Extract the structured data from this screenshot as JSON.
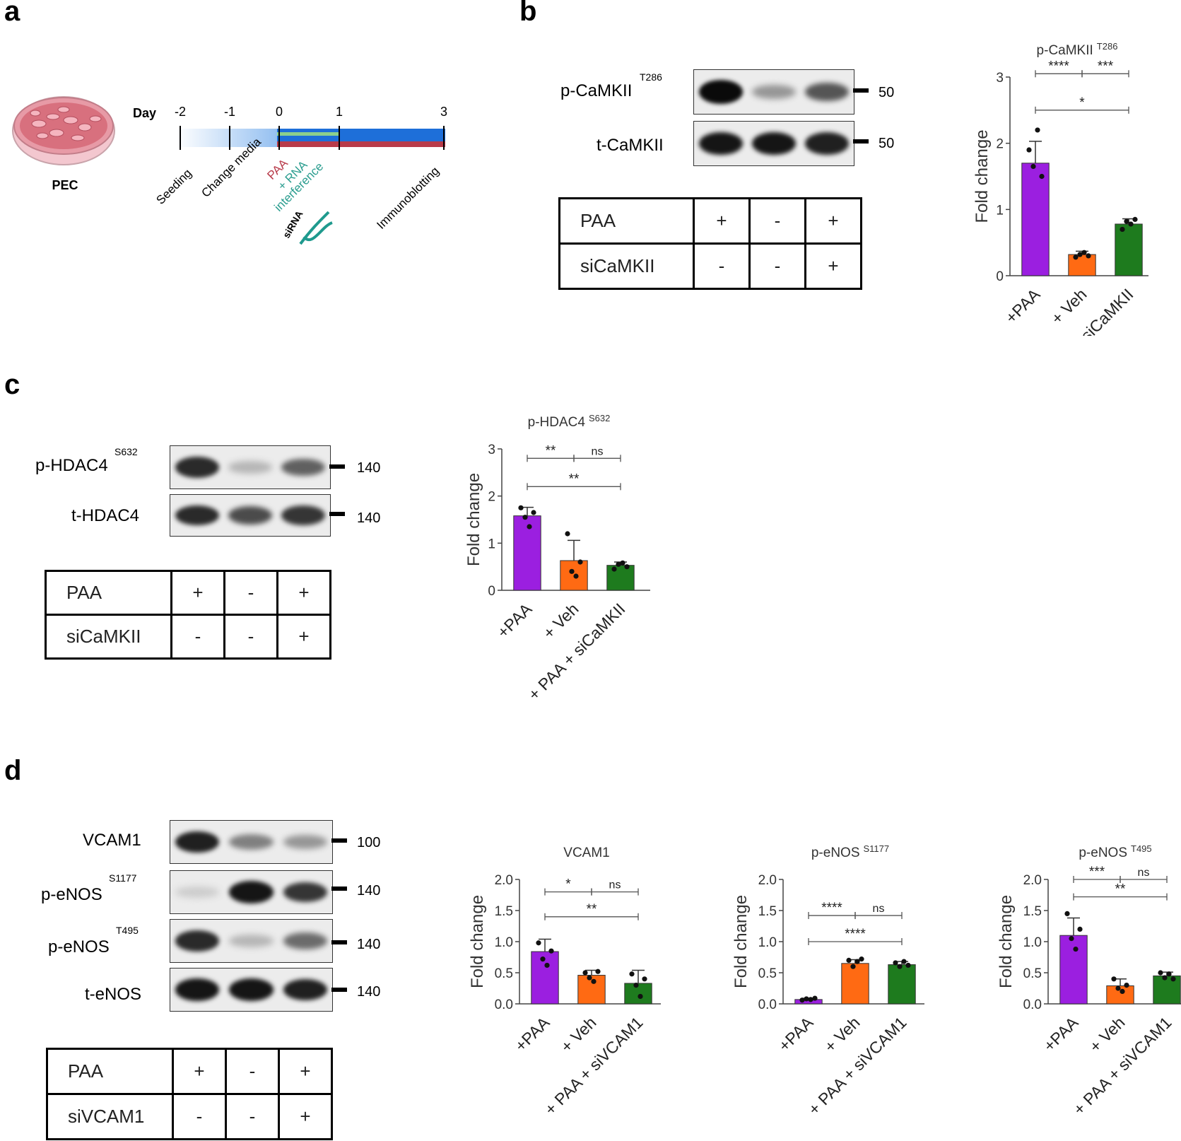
{
  "panel_a": {
    "letter": "a",
    "dish_label": "PEC",
    "day_label": "Day",
    "days": [
      "-2",
      "-1",
      "0",
      "1",
      "3"
    ],
    "events": [
      "Seeding",
      "Change media",
      "PAA",
      "+ RNA",
      "interference",
      "siRNA",
      "Immunoblotting"
    ],
    "colors": {
      "paa": "#b83b4a",
      "rna": "#2a9d8f",
      "timeline": "#1e6fd9"
    }
  },
  "panel_b": {
    "letter": "b",
    "blots": [
      {
        "label": "p-CaMKII",
        "site": "T286",
        "mw": "50",
        "intensities": [
          1.0,
          0.35,
          0.65
        ]
      },
      {
        "label": "t-CaMKII",
        "site": "",
        "mw": "50",
        "intensities": [
          0.95,
          0.95,
          0.9
        ]
      }
    ],
    "conditions": [
      {
        "name": "PAA",
        "values": [
          "+",
          "-",
          "+"
        ]
      },
      {
        "name": "siCaMKII",
        "values": [
          "-",
          "-",
          "+"
        ]
      }
    ]
  },
  "panel_c": {
    "letter": "c",
    "blots": [
      {
        "label": "p-HDAC4",
        "site": "S632",
        "mw": "140",
        "intensities": [
          0.85,
          0.2,
          0.6
        ]
      },
      {
        "label": "t-HDAC4",
        "site": "",
        "mw": "140",
        "intensities": [
          0.85,
          0.7,
          0.8
        ]
      }
    ],
    "conditions": [
      {
        "name": "PAA",
        "values": [
          "+",
          "-",
          "+"
        ]
      },
      {
        "name": "siCaMKII",
        "values": [
          "-",
          "-",
          "+"
        ]
      }
    ]
  },
  "panel_d": {
    "letter": "d",
    "blots": [
      {
        "label": "VCAM1",
        "site": "",
        "mw": "100",
        "intensities": [
          0.9,
          0.45,
          0.35
        ]
      },
      {
        "label": "p-eNOS",
        "site": "S1177",
        "mw": "140",
        "intensities": [
          0.1,
          0.95,
          0.8
        ]
      },
      {
        "label": "p-eNOS",
        "site": "T495",
        "mw": "140",
        "intensities": [
          0.85,
          0.2,
          0.55
        ]
      },
      {
        "label": "t-eNOS",
        "site": "",
        "mw": "140",
        "intensities": [
          0.95,
          0.95,
          0.9
        ]
      }
    ],
    "conditions": [
      {
        "name": "PAA",
        "values": [
          "+",
          "-",
          "+"
        ]
      },
      {
        "name": "siVCAM1",
        "values": [
          "-",
          "-",
          "+"
        ]
      }
    ]
  },
  "chart_data": [
    {
      "id": "b",
      "type": "bar",
      "title": "p-CaMKII",
      "title_sup": "T286",
      "ylabel": "Fold change",
      "ylim": [
        0,
        3
      ],
      "yticks": [
        "0",
        "1",
        "2",
        "3"
      ],
      "categories": [
        "+PAA",
        "+ Veh",
        "+ PAA + siCaMKII"
      ],
      "values": [
        1.7,
        0.32,
        0.78
      ],
      "errors": [
        0.33,
        0.05,
        0.08
      ],
      "points": [
        [
          1.9,
          1.65,
          2.2,
          1.5
        ],
        [
          0.28,
          0.32,
          0.35,
          0.3
        ],
        [
          0.7,
          0.82,
          0.78,
          0.85
        ]
      ],
      "colors": [
        "#9b1fe0",
        "#ff6a13",
        "#1e7b1e"
      ],
      "significance": [
        {
          "label": "****",
          "from": 0,
          "to": 1,
          "y": 3.05
        },
        {
          "label": "***",
          "from": 1,
          "to": 2,
          "y": 3.05
        },
        {
          "label": "*",
          "from": 0,
          "to": 2,
          "y": 2.5
        }
      ]
    },
    {
      "id": "c",
      "type": "bar",
      "title": "p-HDAC4",
      "title_sup": "S632",
      "ylabel": "Fold change",
      "ylim": [
        0,
        3
      ],
      "yticks": [
        "0",
        "1",
        "2",
        "3"
      ],
      "categories": [
        "+PAA",
        "+ Veh",
        "+ PAA + siCaMKII"
      ],
      "values": [
        1.58,
        0.63,
        0.53
      ],
      "errors": [
        0.18,
        0.43,
        0.07
      ],
      "points": [
        [
          1.75,
          1.55,
          1.35,
          1.65
        ],
        [
          1.2,
          0.4,
          0.3,
          0.6
        ],
        [
          0.45,
          0.55,
          0.58,
          0.5
        ]
      ],
      "colors": [
        "#9b1fe0",
        "#ff6a13",
        "#1e7b1e"
      ],
      "significance": [
        {
          "label": "**",
          "from": 0,
          "to": 1,
          "y": 2.8
        },
        {
          "label": "ns",
          "from": 1,
          "to": 2,
          "y": 2.8
        },
        {
          "label": "**",
          "from": 0,
          "to": 2,
          "y": 2.2
        }
      ]
    },
    {
      "id": "d1",
      "type": "bar",
      "title": "VCAM1",
      "title_sup": "",
      "ylabel": "Fold change",
      "ylim": [
        0,
        2.0
      ],
      "yticks": [
        "0.0",
        "0.5",
        "1.0",
        "1.5",
        "2.0"
      ],
      "categories": [
        "+PAA",
        "+ Veh",
        "+ PAA + siVCAM1"
      ],
      "values": [
        0.84,
        0.46,
        0.33
      ],
      "errors": [
        0.2,
        0.08,
        0.21
      ],
      "points": [
        [
          0.98,
          0.72,
          0.62,
          0.85
        ],
        [
          0.5,
          0.42,
          0.36,
          0.52
        ],
        [
          0.48,
          0.3,
          0.12,
          0.4
        ]
      ],
      "colors": [
        "#9b1fe0",
        "#ff6a13",
        "#1e7b1e"
      ],
      "significance": [
        {
          "label": "*",
          "from": 0,
          "to": 1,
          "y": 1.8
        },
        {
          "label": "ns",
          "from": 1,
          "to": 2,
          "y": 1.8
        },
        {
          "label": "**",
          "from": 0,
          "to": 2,
          "y": 1.4
        }
      ]
    },
    {
      "id": "d2",
      "type": "bar",
      "title": "p-eNOS",
      "title_sup": "S1177",
      "ylabel": "Fold change",
      "ylim": [
        0,
        2.0
      ],
      "yticks": [
        "0.0",
        "0.5",
        "1.0",
        "1.5",
        "2.0"
      ],
      "categories": [
        "+PAA",
        "+ Veh",
        "+ PAA + siVCAM1"
      ],
      "values": [
        0.07,
        0.65,
        0.63
      ],
      "errors": [
        0.02,
        0.06,
        0.05
      ],
      "points": [
        [
          0.06,
          0.08,
          0.07,
          0.09
        ],
        [
          0.7,
          0.6,
          0.68,
          0.72
        ],
        [
          0.66,
          0.6,
          0.68,
          0.62
        ]
      ],
      "colors": [
        "#9b1fe0",
        "#ff6a13",
        "#1e7b1e"
      ],
      "significance": [
        {
          "label": "****",
          "from": 0,
          "to": 1,
          "y": 1.42
        },
        {
          "label": "ns",
          "from": 1,
          "to": 2,
          "y": 1.42
        },
        {
          "label": "****",
          "from": 0,
          "to": 2,
          "y": 1.0
        }
      ]
    },
    {
      "id": "d3",
      "type": "bar",
      "title": "p-eNOS",
      "title_sup": "T495",
      "ylabel": "Fold change",
      "ylim": [
        0,
        2.0
      ],
      "yticks": [
        "0.0",
        "0.5",
        "1.0",
        "1.5",
        "2.0"
      ],
      "categories": [
        "+PAA",
        "+ Veh",
        "+ PAA + siVCAM1"
      ],
      "values": [
        1.1,
        0.29,
        0.45
      ],
      "errors": [
        0.28,
        0.11,
        0.06
      ],
      "points": [
        [
          1.45,
          1.05,
          0.88,
          1.2
        ],
        [
          0.4,
          0.25,
          0.2,
          0.3
        ],
        [
          0.5,
          0.42,
          0.48,
          0.4
        ]
      ],
      "colors": [
        "#9b1fe0",
        "#ff6a13",
        "#1e7b1e"
      ],
      "significance": [
        {
          "label": "***",
          "from": 0,
          "to": 1,
          "y": 2.0
        },
        {
          "label": "ns",
          "from": 1,
          "to": 2,
          "y": 2.0
        },
        {
          "label": "**",
          "from": 0,
          "to": 2,
          "y": 1.72
        }
      ]
    }
  ]
}
